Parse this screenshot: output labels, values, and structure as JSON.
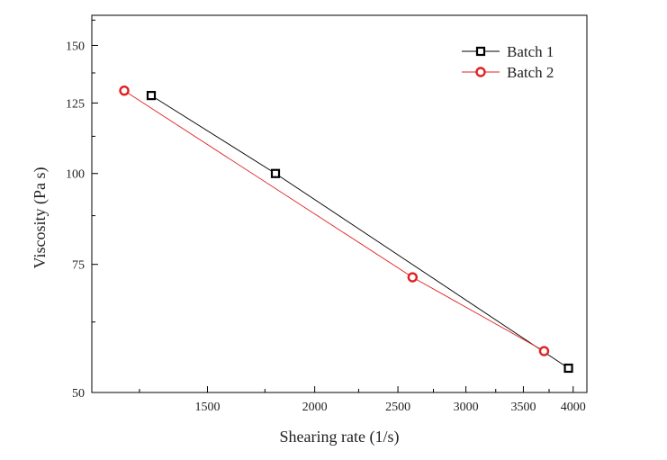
{
  "chart_data": {
    "type": "line",
    "title": "",
    "xlabel": "Shearing rate (1/s)",
    "ylabel": "Viscosity (Pa s)",
    "x_scale": "log",
    "y_scale": "log",
    "xlim": [
      1100,
      4150
    ],
    "ylim": [
      50,
      165
    ],
    "xticks": [
      1500,
      2000,
      2500,
      3000,
      3500,
      4000
    ],
    "xtick_labels": [
      "1500",
      "2000",
      "2500",
      "3000",
      "3500",
      "4000"
    ],
    "yticks": [
      50,
      75,
      100,
      125,
      150
    ],
    "ytick_labels": [
      "50",
      "75",
      "100",
      "125",
      "150"
    ],
    "grid": false,
    "legend_position": "top-right",
    "series": [
      {
        "name": "Batch 1",
        "marker": "square",
        "color": "#000000",
        "x": [
          1290,
          1800,
          3950
        ],
        "y": [
          128,
          100,
          54
        ]
      },
      {
        "name": "Batch 2",
        "marker": "circle",
        "color": "#e02020",
        "x": [
          1200,
          2600,
          3700
        ],
        "y": [
          130,
          72,
          57
        ]
      }
    ]
  }
}
